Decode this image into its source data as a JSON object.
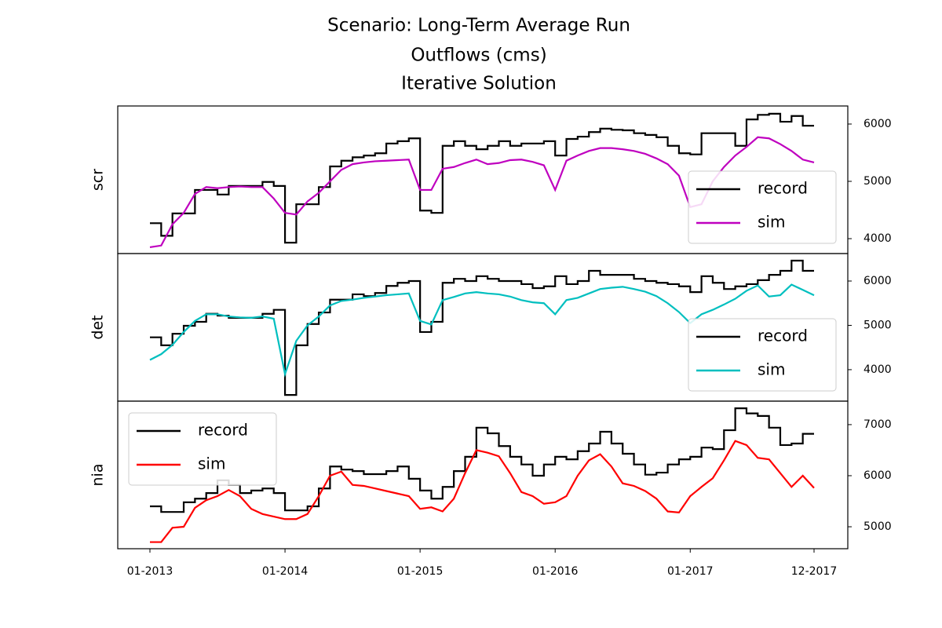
{
  "title": [
    "Scenario: Long-Term Average Run",
    "Outflows (cms)",
    "Iterative Solution"
  ],
  "chart_data": [
    {
      "type": "line",
      "ylabel": "scr",
      "legend": "lower right",
      "ylim": [
        3740,
        6315
      ],
      "yticks": [
        4000,
        5000,
        6000
      ],
      "x": [
        "01-2013",
        "02-2013",
        "03-2013",
        "04-2013",
        "05-2013",
        "06-2013",
        "07-2013",
        "08-2013",
        "09-2013",
        "10-2013",
        "11-2013",
        "12-2013",
        "01-2014",
        "02-2014",
        "03-2014",
        "04-2014",
        "05-2014",
        "06-2014",
        "07-2014",
        "08-2014",
        "09-2014",
        "10-2014",
        "11-2014",
        "12-2014",
        "01-2015",
        "02-2015",
        "03-2015",
        "04-2015",
        "05-2015",
        "06-2015",
        "07-2015",
        "08-2015",
        "09-2015",
        "10-2015",
        "11-2015",
        "12-2015",
        "01-2016",
        "02-2016",
        "03-2016",
        "04-2016",
        "05-2016",
        "06-2016",
        "07-2016",
        "08-2016",
        "09-2016",
        "10-2016",
        "11-2016",
        "12-2016",
        "01-2017",
        "02-2017",
        "03-2017",
        "04-2017",
        "05-2017",
        "06-2017",
        "07-2017",
        "08-2017",
        "09-2017",
        "10-2017",
        "11-2017",
        "12-2017"
      ],
      "series": [
        {
          "name": "record",
          "color": "#000000",
          "drawstyle": "steps-post",
          "values": [
            4270,
            4050,
            4440,
            4440,
            4850,
            4850,
            4770,
            4920,
            4920,
            4920,
            4990,
            4920,
            3930,
            4600,
            4600,
            4900,
            5260,
            5360,
            5420,
            5450,
            5490,
            5660,
            5700,
            5750,
            4490,
            4450,
            5620,
            5700,
            5620,
            5560,
            5620,
            5700,
            5620,
            5660,
            5660,
            5700,
            5450,
            5740,
            5780,
            5860,
            5920,
            5900,
            5890,
            5840,
            5810,
            5770,
            5620,
            5490,
            5470,
            5840,
            5840,
            5840,
            5620,
            6080,
            6160,
            6180,
            6040,
            6140,
            5970,
            5970
          ]
        },
        {
          "name": "sim",
          "color": "#bf00bf",
          "drawstyle": "default",
          "values": [
            3850,
            3880,
            4250,
            4450,
            4780,
            4900,
            4880,
            4900,
            4910,
            4900,
            4900,
            4700,
            4450,
            4420,
            4650,
            4800,
            5000,
            5200,
            5300,
            5330,
            5350,
            5360,
            5370,
            5380,
            4850,
            4850,
            5220,
            5250,
            5320,
            5380,
            5300,
            5320,
            5370,
            5380,
            5340,
            5280,
            4850,
            5360,
            5450,
            5530,
            5580,
            5580,
            5560,
            5530,
            5480,
            5400,
            5300,
            5100,
            4550,
            4600,
            5000,
            5250,
            5450,
            5600,
            5770,
            5750,
            5650,
            5530,
            5380,
            5330
          ]
        }
      ]
    },
    {
      "type": "line",
      "ylabel": "det",
      "legend": "lower right",
      "ylim": [
        3290,
        6620
      ],
      "yticks": [
        4000,
        5000,
        6000
      ],
      "x": [
        "01-2013",
        "02-2013",
        "03-2013",
        "04-2013",
        "05-2013",
        "06-2013",
        "07-2013",
        "08-2013",
        "09-2013",
        "10-2013",
        "11-2013",
        "12-2013",
        "01-2014",
        "02-2014",
        "03-2014",
        "04-2014",
        "05-2014",
        "06-2014",
        "07-2014",
        "08-2014",
        "09-2014",
        "10-2014",
        "11-2014",
        "12-2014",
        "01-2015",
        "02-2015",
        "03-2015",
        "04-2015",
        "05-2015",
        "06-2015",
        "07-2015",
        "08-2015",
        "09-2015",
        "10-2015",
        "11-2015",
        "12-2015",
        "01-2016",
        "02-2016",
        "03-2016",
        "04-2016",
        "05-2016",
        "06-2016",
        "07-2016",
        "08-2016",
        "09-2016",
        "10-2016",
        "11-2016",
        "12-2016",
        "01-2017",
        "02-2017",
        "03-2017",
        "04-2017",
        "05-2017",
        "06-2017",
        "07-2017",
        "08-2017",
        "09-2017",
        "10-2017",
        "11-2017",
        "12-2017"
      ],
      "series": [
        {
          "name": "record",
          "color": "#000000",
          "drawstyle": "steps-post",
          "values": [
            4730,
            4550,
            4810,
            4990,
            5080,
            5260,
            5220,
            5170,
            5170,
            5170,
            5260,
            5350,
            3430,
            4550,
            5030,
            5290,
            5580,
            5580,
            5700,
            5660,
            5730,
            5890,
            5960,
            6000,
            4850,
            5080,
            5960,
            6050,
            6000,
            6110,
            6050,
            6000,
            6000,
            5930,
            5840,
            5880,
            6110,
            5930,
            6000,
            6230,
            6140,
            6140,
            6140,
            6050,
            6000,
            5960,
            5930,
            5880,
            5750,
            6110,
            5960,
            5820,
            5880,
            5930,
            6020,
            6140,
            6230,
            6460,
            6230,
            6230
          ]
        },
        {
          "name": "sim",
          "color": "#00bfbf",
          "drawstyle": "default",
          "values": [
            4220,
            4350,
            4560,
            4850,
            5100,
            5250,
            5250,
            5200,
            5180,
            5170,
            5200,
            5150,
            3900,
            4650,
            5000,
            5200,
            5450,
            5550,
            5580,
            5620,
            5650,
            5680,
            5700,
            5720,
            5100,
            5020,
            5570,
            5640,
            5720,
            5750,
            5720,
            5700,
            5650,
            5570,
            5520,
            5500,
            5250,
            5570,
            5620,
            5720,
            5820,
            5850,
            5870,
            5820,
            5760,
            5660,
            5500,
            5300,
            5050,
            5250,
            5350,
            5470,
            5600,
            5780,
            5900,
            5650,
            5680,
            5920,
            5800,
            5680
          ]
        }
      ]
    },
    {
      "type": "line",
      "ylabel": "nia",
      "legend": "upper left",
      "ylim": [
        4570,
        7460
      ],
      "yticks": [
        5000,
        6000,
        7000
      ],
      "x": [
        "01-2013",
        "02-2013",
        "03-2013",
        "04-2013",
        "05-2013",
        "06-2013",
        "07-2013",
        "08-2013",
        "09-2013",
        "10-2013",
        "11-2013",
        "12-2013",
        "01-2014",
        "02-2014",
        "03-2014",
        "04-2014",
        "05-2014",
        "06-2014",
        "07-2014",
        "08-2014",
        "09-2014",
        "10-2014",
        "11-2014",
        "12-2014",
        "01-2015",
        "02-2015",
        "03-2015",
        "04-2015",
        "05-2015",
        "06-2015",
        "07-2015",
        "08-2015",
        "09-2015",
        "10-2015",
        "11-2015",
        "12-2015",
        "01-2016",
        "02-2016",
        "03-2016",
        "04-2016",
        "05-2016",
        "06-2016",
        "07-2016",
        "08-2016",
        "09-2016",
        "10-2016",
        "11-2016",
        "12-2016",
        "01-2017",
        "02-2017",
        "03-2017",
        "04-2017",
        "05-2017",
        "06-2017",
        "07-2017",
        "08-2017",
        "09-2017",
        "10-2017",
        "11-2017",
        "12-2017"
      ],
      "xticks": [
        "01-2013",
        "01-2014",
        "01-2015",
        "01-2016",
        "01-2017",
        "12-2017"
      ],
      "series": [
        {
          "name": "record",
          "color": "#000000",
          "drawstyle": "steps-post",
          "values": [
            5400,
            5290,
            5290,
            5480,
            5550,
            5660,
            5910,
            5820,
            5660,
            5710,
            5750,
            5660,
            5320,
            5320,
            5400,
            5750,
            6180,
            6120,
            6090,
            6030,
            6030,
            6090,
            6180,
            5940,
            5710,
            5550,
            5780,
            6090,
            6370,
            6940,
            6830,
            6580,
            6370,
            6220,
            6000,
            6220,
            6370,
            6320,
            6480,
            6630,
            6860,
            6630,
            6430,
            6220,
            6020,
            6060,
            6220,
            6320,
            6370,
            6550,
            6520,
            6890,
            7320,
            7220,
            7170,
            6940,
            6600,
            6630,
            6820,
            6820
          ]
        },
        {
          "name": "sim",
          "color": "#ff0000",
          "drawstyle": "default",
          "values": [
            4700,
            4700,
            4980,
            5000,
            5370,
            5520,
            5600,
            5720,
            5600,
            5350,
            5250,
            5200,
            5150,
            5150,
            5250,
            5600,
            6000,
            6080,
            5820,
            5800,
            5750,
            5700,
            5650,
            5600,
            5350,
            5380,
            5300,
            5550,
            6050,
            6500,
            6450,
            6380,
            6050,
            5680,
            5600,
            5450,
            5480,
            5600,
            6000,
            6300,
            6420,
            6180,
            5850,
            5800,
            5700,
            5550,
            5300,
            5280,
            5600,
            5780,
            5950,
            6300,
            6680,
            6600,
            6350,
            6320,
            6050,
            5780,
            6000,
            5760
          ]
        }
      ]
    }
  ]
}
